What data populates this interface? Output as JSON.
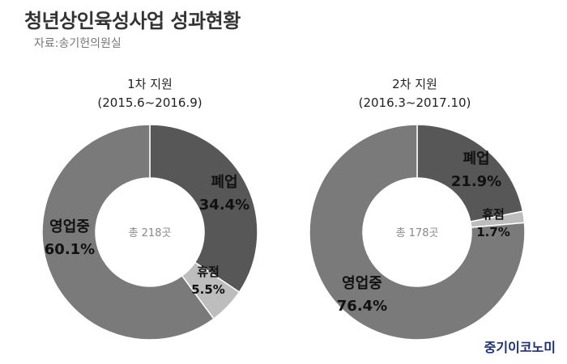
{
  "title": "청년상인육성사업 성과현황",
  "source": "자료:송기헌의원실",
  "brand": "중기이코노미",
  "colors": {
    "영업중": "#7a7a7a",
    "폐업": "#575757",
    "휴점": "#bdbdbd"
  },
  "chart_data": [
    {
      "type": "pie",
      "title": "1차 지원",
      "subtitle": "(2015.6~2016.9)",
      "center_label": "총 218곳",
      "slices": [
        {
          "label": "폐업",
          "value": 34.4,
          "value_label": "34.4%"
        },
        {
          "label": "휴점",
          "value": 5.5,
          "value_label": "5.5%"
        },
        {
          "label": "영업중",
          "value": 60.1,
          "value_label": "60.1%"
        }
      ]
    },
    {
      "type": "pie",
      "title": "2차 지원",
      "subtitle": "(2016.3~2017.10)",
      "center_label": "총 178곳",
      "slices": [
        {
          "label": "폐업",
          "value": 21.9,
          "value_label": "21.9%"
        },
        {
          "label": "휴점",
          "value": 1.7,
          "value_label": "1.7%"
        },
        {
          "label": "영업중",
          "value": 76.4,
          "value_label": "76.4%"
        }
      ]
    }
  ]
}
